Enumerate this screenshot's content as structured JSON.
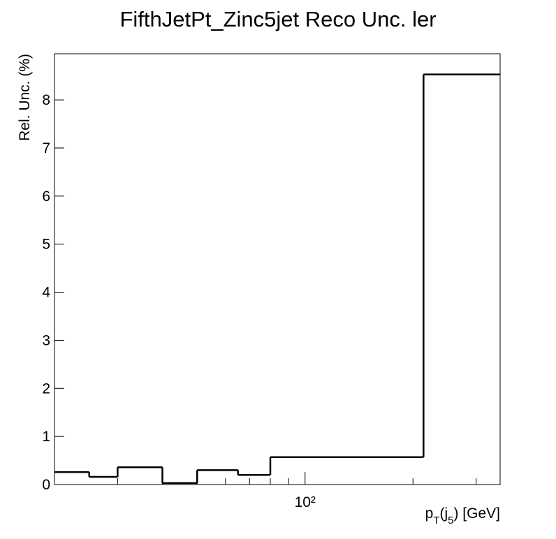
{
  "chart_data": {
    "type": "histogram",
    "title": "FifthJetPt_Zinc5jet Reco Unc. ler",
    "y_label": "Rel. Unc. (%)",
    "x_label_parts": [
      "p",
      "T",
      "(j",
      "5",
      ") [GeV]"
    ],
    "bins": [
      20,
      25,
      30,
      40,
      50,
      65,
      80,
      214,
      350
    ],
    "values": [
      0.26,
      0.16,
      0.36,
      0.03,
      0.3,
      0.2,
      0.57,
      8.53
    ],
    "color": "#000000",
    "log_x": true,
    "xlim": [
      20,
      350
    ],
    "xticks": [
      {
        "value": 100,
        "label": "10²"
      }
    ],
    "xminorticks": [
      20,
      30,
      40,
      50,
      60,
      70,
      80,
      90,
      200,
      300
    ],
    "ylim": [
      0,
      8.96
    ],
    "yticks": [
      0,
      1,
      2,
      3,
      4,
      5,
      6,
      7,
      8
    ],
    "grid": false
  }
}
